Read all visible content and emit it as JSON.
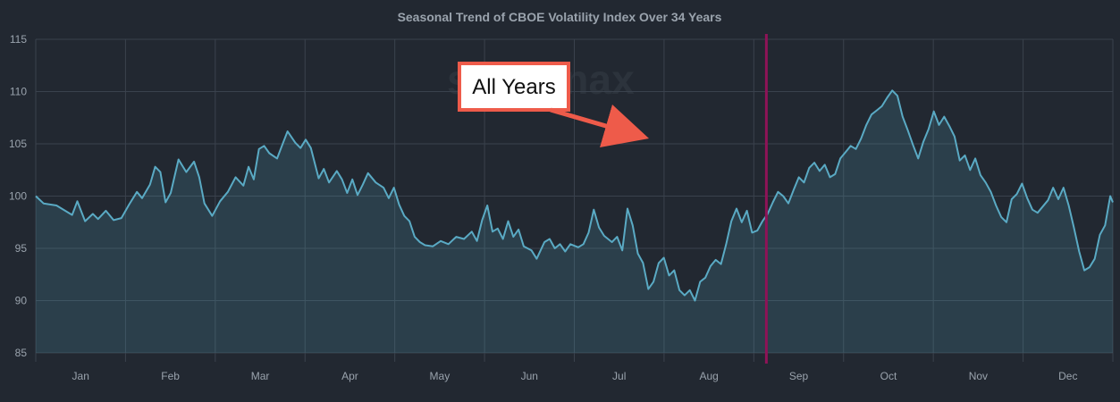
{
  "chart_data": {
    "type": "area",
    "title": "Seasonal Trend of CBOE Volatility Index Over 34 Years",
    "watermark": "seasonax",
    "xlabel": "",
    "ylabel": "",
    "ylim": [
      85,
      115
    ],
    "yticks": [
      85,
      90,
      95,
      100,
      105,
      110,
      115
    ],
    "x_tick_labels": [
      "Jan",
      "Feb",
      "Mar",
      "Apr",
      "May",
      "Jun",
      "Jul",
      "Aug",
      "Sep",
      "Oct",
      "Nov",
      "Dec"
    ],
    "grid": true,
    "series": [
      {
        "color": "#5aaac4",
        "values": [
          [
            0,
            100.0
          ],
          [
            3,
            99.3
          ],
          [
            8,
            99.1
          ],
          [
            14,
            98.2
          ],
          [
            16,
            99.5
          ],
          [
            19,
            97.6
          ],
          [
            22,
            98.3
          ],
          [
            24,
            97.8
          ],
          [
            27,
            98.6
          ],
          [
            30,
            97.7
          ],
          [
            33,
            97.9
          ],
          [
            36,
            99.2
          ],
          [
            39,
            100.4
          ],
          [
            41,
            99.8
          ],
          [
            44,
            101.1
          ],
          [
            46,
            102.8
          ],
          [
            48,
            102.3
          ],
          [
            50,
            99.4
          ],
          [
            52,
            100.3
          ],
          [
            55,
            103.5
          ],
          [
            58,
            102.3
          ],
          [
            61,
            103.3
          ],
          [
            63,
            101.8
          ],
          [
            65,
            99.3
          ],
          [
            68,
            98.1
          ],
          [
            71,
            99.5
          ],
          [
            74,
            100.4
          ],
          [
            77,
            101.8
          ],
          [
            80,
            101.0
          ],
          [
            82,
            102.8
          ],
          [
            84,
            101.6
          ],
          [
            86,
            104.5
          ],
          [
            88,
            104.8
          ],
          [
            90,
            104.1
          ],
          [
            93,
            103.6
          ],
          [
            95,
            104.9
          ],
          [
            97,
            106.2
          ],
          [
            100,
            105.1
          ],
          [
            102,
            104.6
          ],
          [
            104,
            105.4
          ],
          [
            106,
            104.6
          ],
          [
            109,
            101.7
          ],
          [
            111,
            102.6
          ],
          [
            113,
            101.3
          ],
          [
            116,
            102.4
          ],
          [
            118,
            101.6
          ],
          [
            120,
            100.3
          ],
          [
            122,
            101.6
          ],
          [
            124,
            100.1
          ],
          [
            126,
            101.1
          ],
          [
            128,
            102.2
          ],
          [
            131,
            101.3
          ],
          [
            134,
            100.8
          ],
          [
            136,
            99.8
          ],
          [
            138,
            100.8
          ],
          [
            140,
            99.2
          ],
          [
            142,
            98.1
          ],
          [
            144,
            97.6
          ],
          [
            146,
            96.1
          ],
          [
            148,
            95.6
          ],
          [
            150,
            95.3
          ],
          [
            153,
            95.2
          ],
          [
            156,
            95.7
          ],
          [
            159,
            95.4
          ],
          [
            162,
            96.1
          ],
          [
            165,
            95.9
          ],
          [
            168,
            96.6
          ],
          [
            170,
            95.7
          ],
          [
            172,
            97.7
          ],
          [
            174,
            99.1
          ],
          [
            176,
            96.6
          ],
          [
            178,
            96.9
          ],
          [
            180,
            95.9
          ],
          [
            182,
            97.6
          ],
          [
            184,
            96.1
          ],
          [
            186,
            96.8
          ],
          [
            188,
            95.2
          ],
          [
            191,
            94.8
          ],
          [
            193,
            94.0
          ],
          [
            196,
            95.6
          ],
          [
            198,
            95.9
          ],
          [
            200,
            95.0
          ],
          [
            202,
            95.4
          ],
          [
            204,
            94.7
          ],
          [
            206,
            95.4
          ],
          [
            209,
            95.1
          ],
          [
            211,
            95.4
          ],
          [
            213,
            96.5
          ],
          [
            215,
            98.7
          ],
          [
            217,
            97.0
          ],
          [
            219,
            96.2
          ],
          [
            222,
            95.6
          ],
          [
            224,
            96.1
          ],
          [
            226,
            94.8
          ],
          [
            228,
            98.8
          ],
          [
            230,
            97.2
          ],
          [
            232,
            94.5
          ],
          [
            234,
            93.6
          ],
          [
            236,
            91.1
          ],
          [
            238,
            91.8
          ],
          [
            240,
            93.6
          ],
          [
            242,
            94.1
          ],
          [
            244,
            92.4
          ],
          [
            246,
            92.9
          ],
          [
            248,
            91.0
          ],
          [
            250,
            90.5
          ],
          [
            252,
            91.0
          ],
          [
            254,
            90.0
          ],
          [
            256,
            91.8
          ],
          [
            258,
            92.2
          ],
          [
            260,
            93.3
          ],
          [
            262,
            93.9
          ],
          [
            264,
            93.5
          ],
          [
            266,
            95.4
          ],
          [
            268,
            97.6
          ],
          [
            270,
            98.8
          ],
          [
            272,
            97.5
          ],
          [
            274,
            98.6
          ],
          [
            276,
            96.5
          ],
          [
            278,
            96.7
          ],
          [
            280,
            97.6
          ],
          [
            282,
            98.3
          ],
          [
            284,
            99.4
          ],
          [
            286,
            100.4
          ],
          [
            288,
            100.0
          ],
          [
            290,
            99.3
          ],
          [
            292,
            100.6
          ],
          [
            294,
            101.8
          ],
          [
            296,
            101.3
          ],
          [
            298,
            102.7
          ],
          [
            300,
            103.2
          ],
          [
            302,
            102.4
          ],
          [
            304,
            103.0
          ],
          [
            306,
            101.8
          ],
          [
            308,
            102.1
          ],
          [
            310,
            103.6
          ],
          [
            312,
            104.2
          ],
          [
            314,
            104.8
          ],
          [
            316,
            104.5
          ],
          [
            318,
            105.5
          ],
          [
            320,
            106.8
          ],
          [
            322,
            107.8
          ],
          [
            324,
            108.2
          ],
          [
            326,
            108.6
          ],
          [
            328,
            109.4
          ],
          [
            330,
            110.1
          ],
          [
            332,
            109.6
          ],
          [
            334,
            107.6
          ],
          [
            336,
            106.3
          ],
          [
            338,
            104.9
          ],
          [
            340,
            103.6
          ],
          [
            342,
            105.2
          ],
          [
            344,
            106.4
          ],
          [
            346,
            108.1
          ],
          [
            348,
            106.8
          ],
          [
            350,
            107.6
          ],
          [
            352,
            106.7
          ],
          [
            354,
            105.7
          ],
          [
            356,
            103.4
          ],
          [
            358,
            103.9
          ],
          [
            360,
            102.5
          ],
          [
            362,
            103.6
          ],
          [
            364,
            102.0
          ],
          [
            366,
            101.3
          ],
          [
            368,
            100.4
          ],
          [
            370,
            99.1
          ],
          [
            372,
            98.0
          ],
          [
            374,
            97.5
          ],
          [
            376,
            99.7
          ],
          [
            378,
            100.2
          ],
          [
            380,
            101.2
          ],
          [
            382,
            99.8
          ],
          [
            384,
            98.7
          ],
          [
            386,
            98.4
          ],
          [
            388,
            99.0
          ],
          [
            390,
            99.6
          ],
          [
            392,
            100.8
          ],
          [
            394,
            99.7
          ],
          [
            396,
            100.8
          ],
          [
            398,
            99.1
          ],
          [
            400,
            97.0
          ],
          [
            402,
            94.7
          ],
          [
            404,
            92.9
          ],
          [
            406,
            93.2
          ],
          [
            408,
            94.0
          ],
          [
            410,
            96.3
          ],
          [
            412,
            97.2
          ],
          [
            414,
            100.0
          ],
          [
            415,
            99.4
          ]
        ]
      }
    ],
    "marker_line": {
      "x": 281.5,
      "color": "#8e1357"
    },
    "annotation": {
      "text": "All Years",
      "border_color": "#ee5b4a"
    }
  }
}
